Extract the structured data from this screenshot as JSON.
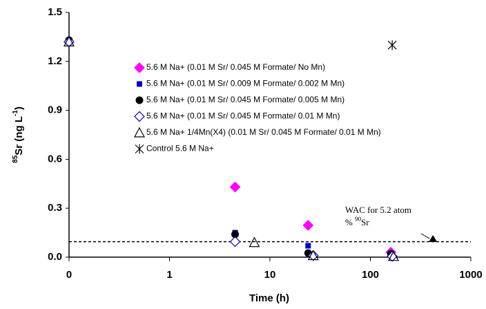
{
  "chart_data": {
    "type": "scatter",
    "x_label": "Time (h)",
    "y_label": [
      "85",
      "Sr (ng L",
      "-1",
      ")"
    ],
    "xlim": [
      0.1,
      1000
    ],
    "xlog": true,
    "xticks": [
      {
        "value": 0.1,
        "label": "0"
      },
      1,
      10,
      100,
      1000
    ],
    "ylim": [
      0,
      1.5
    ],
    "yticks": [
      {
        "value": 0,
        "label": "0.0"
      },
      0.3,
      0.6,
      0.9,
      1.2,
      1.5
    ],
    "grid": false,
    "series": [
      {
        "name": "5.6 M Na+ (0.01 M Sr/ 0.045 M Formate/ No Mn)",
        "color": "#ff00ff",
        "marker": "diamond",
        "x": [
          0.1,
          4.5,
          24,
          160
        ],
        "values": [
          1.32,
          0.43,
          0.195,
          0.03
        ]
      },
      {
        "name": "5.6 M Na+ (0.01 M Sr/ 0.009 M Formate/ 0.002 M Mn)",
        "color": "#0000cc",
        "marker": "square",
        "x": [
          0.1,
          4.5,
          24,
          160
        ],
        "values": [
          1.32,
          0.15,
          0.07,
          0.02
        ]
      },
      {
        "name": "5.6 M Na+ (0.01 M Sr/ 0.045 M Formate/ 0.005 M Mn)",
        "color": "#000000",
        "marker": "circle",
        "x": [
          0.1,
          4.5,
          24,
          160
        ],
        "values": [
          1.33,
          0.14,
          0.025,
          0.02
        ]
      },
      {
        "name": "5.6 M Na+ (0.01 M Sr/ 0.045 M Formate/ 0.01 M Mn)",
        "color": "#0000cc",
        "marker": "open-diamond",
        "x": [
          0.1,
          4.5,
          27,
          165
        ],
        "values": [
          1.32,
          0.095,
          0.01,
          0.005
        ]
      },
      {
        "name": "5.6 M Na+ 1/4Mn(X4) (0.01 M Sr/ 0.045 M Formate/ 0.01 M Mn)",
        "color": "#000000",
        "marker": "open-triangle",
        "x": [
          0.1,
          7,
          27,
          170
        ],
        "values": [
          1.32,
          0.09,
          0.01,
          0.005
        ]
      },
      {
        "name": "Control 5.6 M Na+",
        "color": "#000000",
        "marker": "star",
        "x": [
          165
        ],
        "values": [
          1.3
        ]
      }
    ],
    "reference_line": {
      "y": 0.095,
      "label": [
        "WAC for 5.2 atom",
        "% ",
        "90",
        "Sr"
      ],
      "marker_x": 420,
      "marker_y": 0.11
    }
  }
}
